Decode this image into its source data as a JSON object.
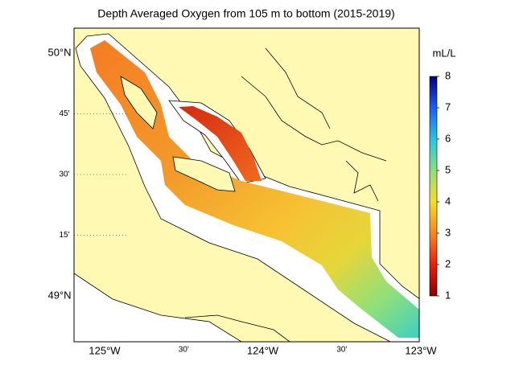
{
  "title": "Depth Averaged Oxygen from 105 m to bottom (2015-2019)",
  "lat_labels": [
    "50°N",
    "45'",
    "30'",
    "15'",
    "49°N"
  ],
  "lon_labels": [
    "125°W",
    "30'",
    "124°W",
    "30'",
    "123°W"
  ],
  "colorbar": {
    "label": "mL/L",
    "range": [
      1,
      8
    ],
    "ticks": [
      1,
      2,
      3,
      4,
      5,
      6,
      7,
      8
    ]
  }
}
